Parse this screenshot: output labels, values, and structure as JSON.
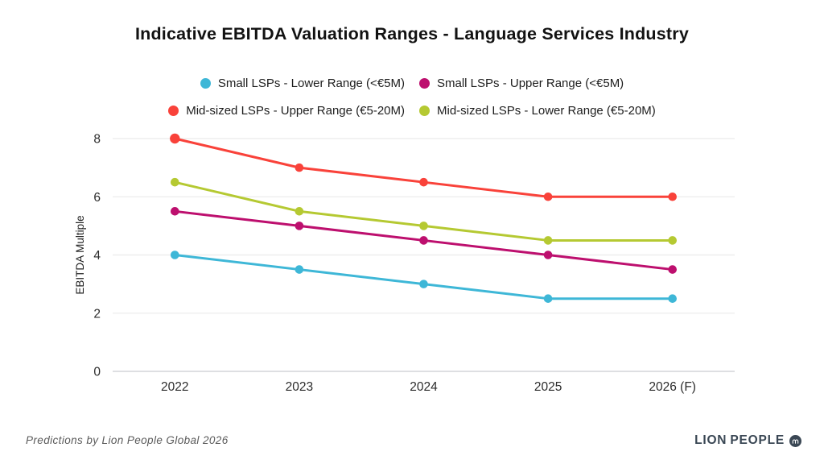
{
  "title": "Indicative EBITDA Valuation Ranges - Language Services Industry",
  "chart_data": {
    "type": "line",
    "x": [
      "2022",
      "2023",
      "2024",
      "2025",
      "2026 (F)"
    ],
    "ylabel": "EBITDA Multiple",
    "ylim": [
      0,
      8
    ],
    "yticks": [
      0,
      2,
      4,
      6,
      8
    ],
    "grid": true,
    "legend_position": "top-center",
    "series": [
      {
        "name": "Small LSPs - Lower Range (<€5M)",
        "color": "#3EB7D7",
        "legend_row": 1,
        "values": [
          4.0,
          3.5,
          3.0,
          2.5,
          2.5
        ]
      },
      {
        "name": "Small LSPs - Upper Range (<€5M)",
        "color": "#BD0F6E",
        "legend_row": 1,
        "values": [
          5.5,
          5.0,
          4.5,
          4.0,
          3.5
        ]
      },
      {
        "name": "Mid-sized LSPs - Upper Range (€5-20M)",
        "color": "#F9423A",
        "legend_row": 2,
        "values": [
          8.0,
          7.0,
          6.5,
          6.0,
          6.0
        ]
      },
      {
        "name": "Mid-sized LSPs - Lower Range (€5-20M)",
        "color": "#B5C932",
        "legend_row": 2,
        "values": [
          6.5,
          5.5,
          5.0,
          4.5,
          4.5
        ]
      }
    ],
    "colors": {
      "grid_line": "#ebebeb",
      "axis_line": "#c9ccd1",
      "tick_label": "#2b2b2b",
      "axis_title": "#222222"
    }
  },
  "footer": {
    "caption": "Predictions by Lion People Global 2026",
    "brand_part_1": "LION",
    "brand_part_2": "PEOPLE"
  }
}
